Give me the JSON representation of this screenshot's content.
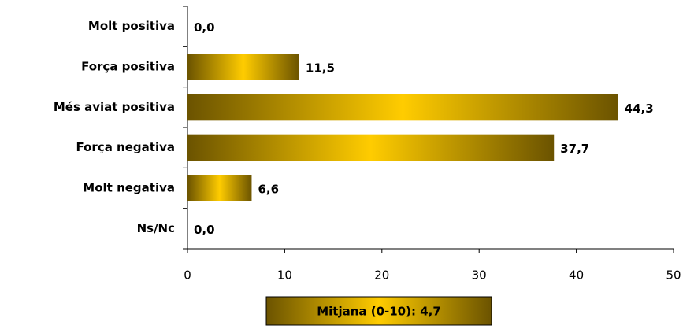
{
  "chart_data": {
    "type": "hbar",
    "categories": [
      "Molt positiva",
      "Força positiva",
      "Més aviat positiva",
      "Força negativa",
      "Molt negativa",
      "Ns/Nc"
    ],
    "values": [
      0.0,
      11.5,
      44.3,
      37.7,
      6.6,
      0.0
    ],
    "value_labels": [
      "0,0",
      "11,5",
      "44,3",
      "37,7",
      "6,6",
      "0,0"
    ],
    "color": "#ffcc00",
    "xlim": [
      0,
      50
    ],
    "xticks": [
      0,
      10,
      20,
      30,
      40,
      50
    ],
    "annotation": "Mitjana (0-10): 4,7"
  }
}
